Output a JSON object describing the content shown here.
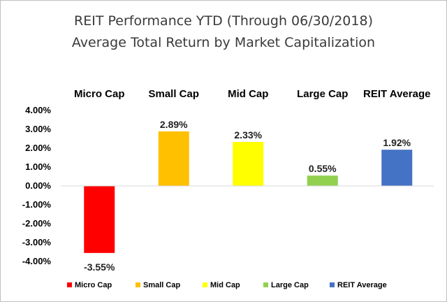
{
  "chart_data": {
    "type": "bar",
    "title": "REIT Performance YTD (Through 06/30/2018)",
    "subtitle": "Average Total Return by Market Capitalization",
    "categories": [
      "Micro Cap",
      "Small Cap",
      "Mid Cap",
      "Large Cap",
      "REIT Average"
    ],
    "values": [
      -3.55,
      2.89,
      2.33,
      0.55,
      1.92
    ],
    "data_labels": [
      "-3.55%",
      "2.89%",
      "2.33%",
      "0.55%",
      "1.92%"
    ],
    "colors": [
      "#ff0000",
      "#ffc000",
      "#ffff00",
      "#92d050",
      "#4472c4"
    ],
    "ylim": [
      -4,
      4
    ],
    "yticks": [
      4,
      3,
      2,
      1,
      0,
      -1,
      -2,
      -3,
      -4
    ],
    "ytick_labels": [
      "4.00%",
      "3.00%",
      "2.00%",
      "1.00%",
      "0.00%",
      "-1.00%",
      "-2.00%",
      "-3.00%",
      "-4.00%"
    ],
    "category_labels_position": "top",
    "grid": false,
    "legend": {
      "position": "bottom",
      "entries": [
        "Micro Cap",
        "Small Cap",
        "Mid Cap",
        "Large Cap",
        "REIT Average"
      ]
    }
  }
}
